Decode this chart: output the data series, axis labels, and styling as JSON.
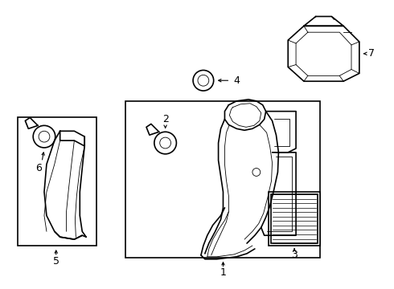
{
  "background_color": "#ffffff",
  "line_color": "#000000",
  "line_width": 1.2,
  "thin_line": 0.6,
  "fig_width": 4.9,
  "fig_height": 3.6
}
